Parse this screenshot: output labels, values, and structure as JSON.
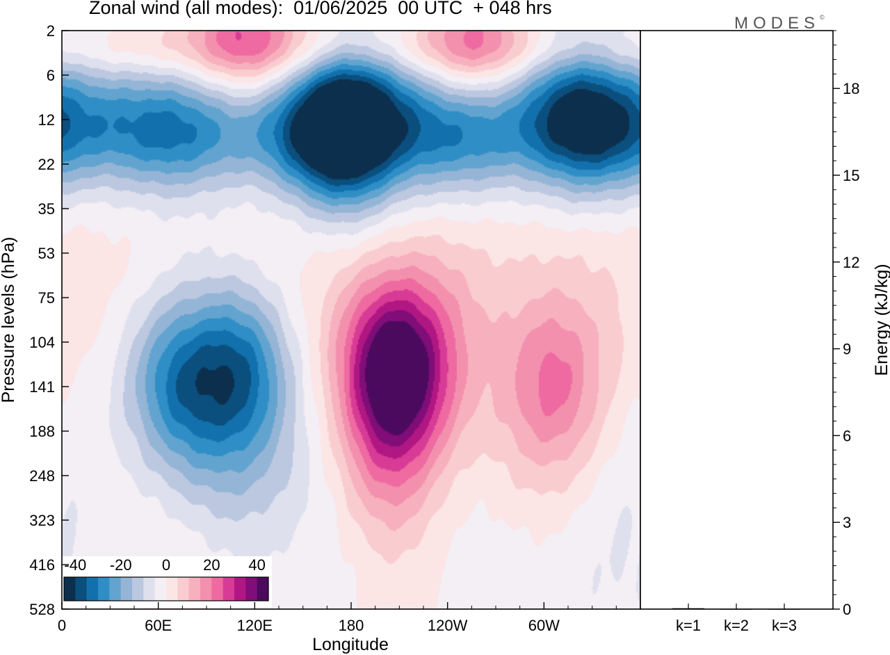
{
  "header": {
    "title": "Zonal wind (all modes):  01/06/2025  00 UTC  + 048 hrs",
    "brand": "MODES",
    "brand_mark": "©"
  },
  "chart_data": [
    {
      "type": "heatmap",
      "title": "Zonal wind (all modes):  01/06/2025  00 UTC  + 048 hrs",
      "xlabel": "Longitude",
      "ylabel": "Pressure levels (hPa)",
      "x_ticks": [
        "0",
        "60E",
        "120E",
        "180",
        "120W",
        "60W"
      ],
      "x_tick_degrees": [
        0,
        60,
        120,
        180,
        240,
        300
      ],
      "xlim_degrees": [
        0,
        360
      ],
      "y_ticks": [
        "2",
        "6",
        "12",
        "22",
        "35",
        "53",
        "75",
        "104",
        "141",
        "188",
        "248",
        "323",
        "416",
        "528"
      ],
      "y_scale": "level index (top to bottom)",
      "colorbar": {
        "tick_labels": [
          "-40",
          "-20",
          "0",
          "20",
          "40"
        ],
        "tick_values": [
          -40,
          -20,
          0,
          20,
          40
        ],
        "range": [
          -45,
          45
        ],
        "step": 5,
        "colors": [
          "#0c2f4d",
          "#0b4f7e",
          "#1271ad",
          "#2f8ec5",
          "#62a4cf",
          "#95b5d6",
          "#bcc8e0",
          "#dfe0ed",
          "#f4eef5",
          "#fbe5e5",
          "#f9cccf",
          "#f7b0bd",
          "#f390ad",
          "#ee6aa1",
          "#d83b96",
          "#b11783",
          "#800d78",
          "#4c0a5f"
        ]
      },
      "blobs": [
        {
          "lon": 175,
          "level": 9.7,
          "u": -7
        },
        {
          "lon": 175,
          "level": 12.6,
          "u": -2
        },
        {
          "lon": 10,
          "level": 12,
          "u": -3
        },
        {
          "lon": 190,
          "level": 1.5,
          "u": -9
        },
        {
          "lon": 340,
          "level": 10,
          "u": -4
        },
        {
          "lon": 100,
          "level": 7.2,
          "u": 3
        },
        {
          "lon": 330,
          "level": 5.5,
          "u": 2
        },
        {
          "lon": 75,
          "level": 11.8,
          "u": 3
        },
        {
          "lon": 112,
          "level": -0.1,
          "u": 20
        },
        {
          "lon": 255,
          "level": 0.1,
          "u": 18
        },
        {
          "lon": 160,
          "level": 0.5,
          "u": 7
        },
        {
          "lon": 0,
          "level": 0.6,
          "u": -6
        },
        {
          "lon": 180,
          "level": 2.3,
          "u": -20
        },
        {
          "lon": 170,
          "level": 1.9,
          "u": -16
        },
        {
          "lon": 320,
          "level": 1.6,
          "u": -19
        },
        {
          "lon": 70,
          "level": 7.9,
          "u": -20
        },
        {
          "lon": 95,
          "level": 8.3,
          "u": -9
        },
        {
          "lon": 112,
          "level": 7.5,
          "u": -22
        },
        {
          "lon": 107,
          "level": 9.0,
          "u": -8
        },
        {
          "lon": 105,
          "level": 10.8,
          "u": -4
        },
        {
          "lon": 83,
          "level": 6.6,
          "u": -5
        },
        {
          "lon": 204,
          "level": 7.5,
          "u": 27
        },
        {
          "lon": 212,
          "level": 8.0,
          "u": 18
        },
        {
          "lon": 200,
          "level": 9.8,
          "u": 14
        },
        {
          "lon": 230,
          "level": 7.0,
          "u": 10
        },
        {
          "lon": 213,
          "level": 11.8,
          "u": 5
        },
        {
          "lon": 175,
          "level": 8.4,
          "u": 5
        },
        {
          "lon": 307,
          "level": 7.9,
          "u": 18
        },
        {
          "lon": 305,
          "level": 9.8,
          "u": 7
        },
        {
          "lon": 250,
          "level": 11.5,
          "u": -3.5
        },
        {
          "lon": 270,
          "level": 13.0,
          "u": -2
        },
        {
          "lon": 322,
          "level": 12.2,
          "u": -3
        }
      ]
    },
    {
      "type": "bar",
      "ylabel": "Energy (kJ/kg)",
      "categories": [
        "k=1",
        "k=2",
        "k=3"
      ],
      "values": [
        0.03,
        0.01,
        0.01
      ],
      "ylim": [
        0,
        20
      ],
      "y_ticks": [
        "0",
        "3",
        "6",
        "9",
        "12",
        "15",
        "18"
      ],
      "y_tick_values": [
        0,
        3,
        6,
        9,
        12,
        15,
        18
      ]
    }
  ]
}
